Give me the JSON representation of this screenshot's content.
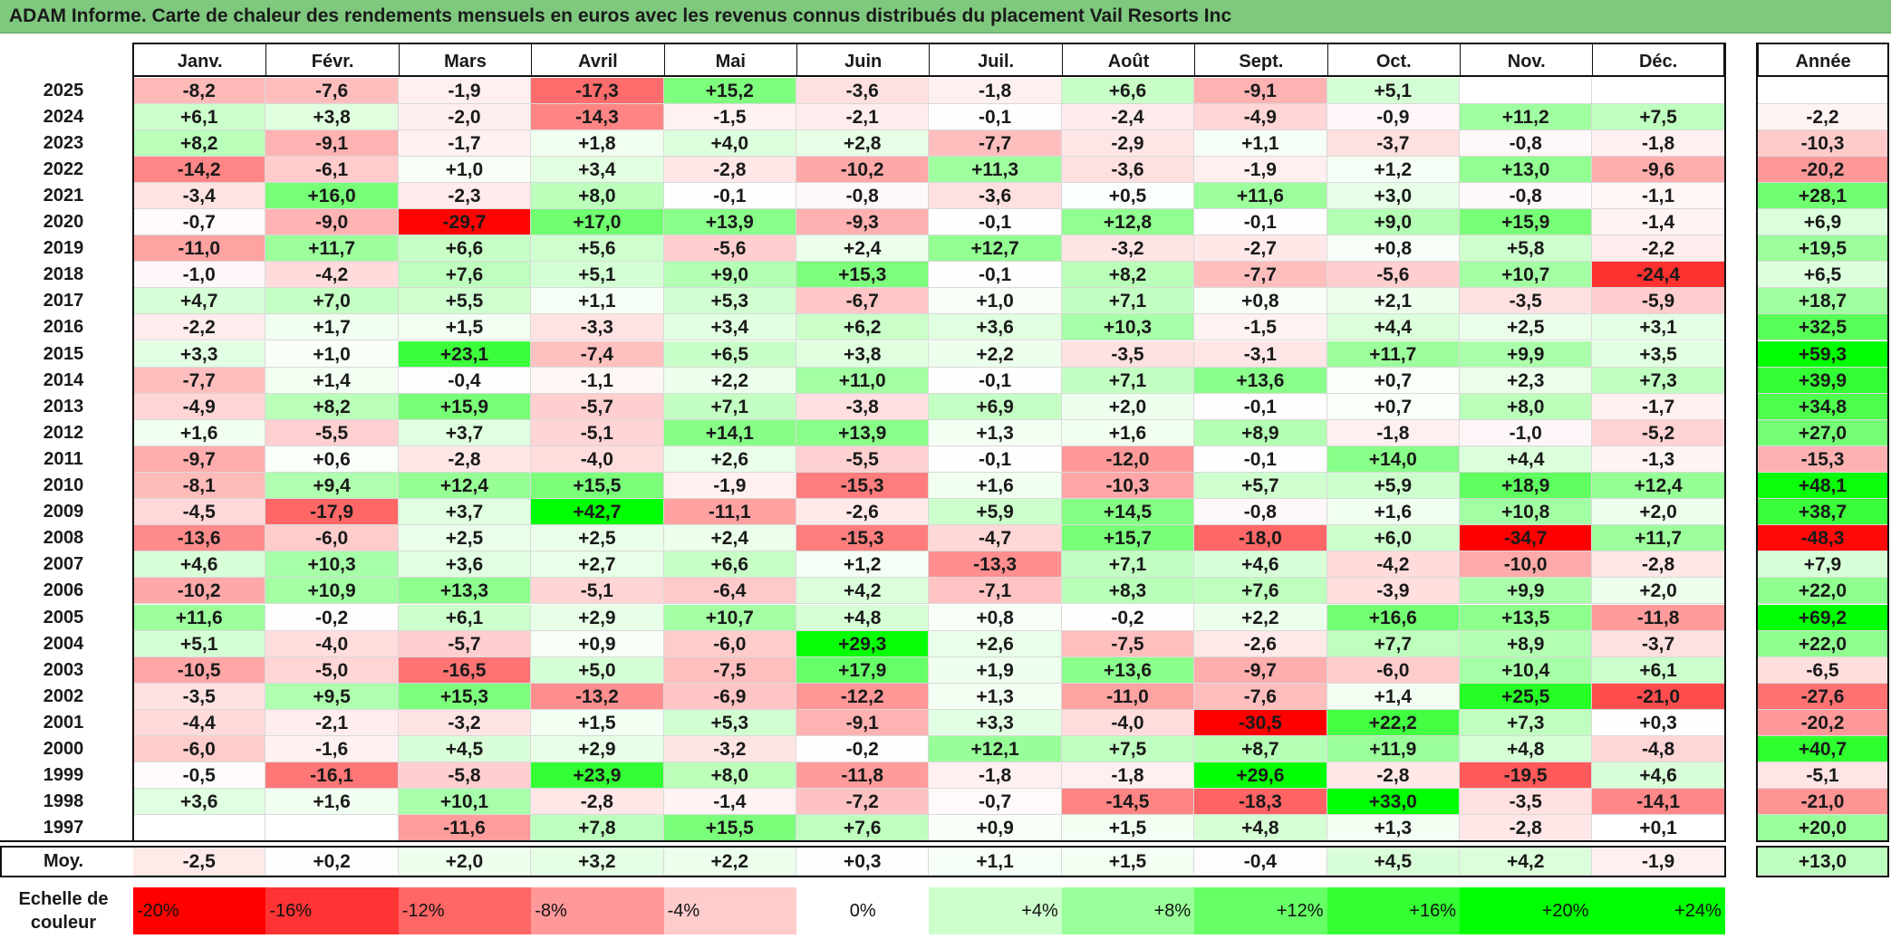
{
  "header": {
    "title": "ADAM Informe. Carte de chaleur des rendements mensuels en euros avec les revenus connus distribués du placement Vail Resorts Inc"
  },
  "chart_data": {
    "type": "heatmap",
    "title": "ADAM Informe. Carte de chaleur des rendements mensuels en euros avec les revenus connus distribués du placement Vail Resorts Inc",
    "months": [
      "Janv.",
      "Févr.",
      "Mars",
      "Avril",
      "Mai",
      "Juin",
      "Juil.",
      "Août",
      "Sept.",
      "Oct.",
      "Nov.",
      "Déc."
    ],
    "annual_label": "Année",
    "years": [
      "2025",
      "2024",
      "2023",
      "2022",
      "2021",
      "2020",
      "2019",
      "2018",
      "2017",
      "2016",
      "2015",
      "2014",
      "2013",
      "2012",
      "2011",
      "2010",
      "2009",
      "2008",
      "2007",
      "2006",
      "2005",
      "2004",
      "2003",
      "2002",
      "2001",
      "2000",
      "1999",
      "1998",
      "1997"
    ],
    "values": [
      [
        "-8,2",
        "-7,6",
        "-1,9",
        "-17,3",
        "+15,2",
        "-3,6",
        "-1,8",
        "+6,6",
        "-9,1",
        "+5,1",
        "",
        ""
      ],
      [
        "+6,1",
        "+3,8",
        "-2,0",
        "-14,3",
        "-1,5",
        "-2,1",
        "-0,1",
        "-2,4",
        "-4,9",
        "-0,9",
        "+11,2",
        "+7,5"
      ],
      [
        "+8,2",
        "-9,1",
        "-1,7",
        "+1,8",
        "+4,0",
        "+2,8",
        "-7,7",
        "-2,9",
        "+1,1",
        "-3,7",
        "-0,8",
        "-1,8"
      ],
      [
        "-14,2",
        "-6,1",
        "+1,0",
        "+3,4",
        "-2,8",
        "-10,2",
        "+11,3",
        "-3,6",
        "-1,9",
        "+1,2",
        "+13,0",
        "-9,6"
      ],
      [
        "-3,4",
        "+16,0",
        "-2,3",
        "+8,0",
        "-0,1",
        "-0,8",
        "-3,6",
        "+0,5",
        "+11,6",
        "+3,0",
        "-0,8",
        "-1,1"
      ],
      [
        "-0,7",
        "-9,0",
        "-29,7",
        "+17,0",
        "+13,9",
        "-9,3",
        "-0,1",
        "+12,8",
        "-0,1",
        "+9,0",
        "+15,9",
        "-1,4"
      ],
      [
        "-11,0",
        "+11,7",
        "+6,6",
        "+5,6",
        "-5,6",
        "+2,4",
        "+12,7",
        "-3,2",
        "-2,7",
        "+0,8",
        "+5,8",
        "-2,2"
      ],
      [
        "-1,0",
        "-4,2",
        "+7,6",
        "+5,1",
        "+9,0",
        "+15,3",
        "-0,1",
        "+8,2",
        "-7,7",
        "-5,6",
        "+10,7",
        "-24,4"
      ],
      [
        "+4,7",
        "+7,0",
        "+5,5",
        "+1,1",
        "+5,3",
        "-6,7",
        "+1,0",
        "+7,1",
        "+0,8",
        "+2,1",
        "-3,5",
        "-5,9"
      ],
      [
        "-2,2",
        "+1,7",
        "+1,5",
        "-3,3",
        "+3,4",
        "+6,2",
        "+3,6",
        "+10,3",
        "-1,5",
        "+4,4",
        "+2,5",
        "+3,1"
      ],
      [
        "+3,3",
        "+1,0",
        "+23,1",
        "-7,4",
        "+6,5",
        "+3,8",
        "+2,2",
        "-3,5",
        "-3,1",
        "+11,7",
        "+9,9",
        "+3,5"
      ],
      [
        "-7,7",
        "+1,4",
        "-0,4",
        "-1,1",
        "+2,2",
        "+11,0",
        "-0,1",
        "+7,1",
        "+13,6",
        "+0,7",
        "+2,3",
        "+7,3"
      ],
      [
        "-4,9",
        "+8,2",
        "+15,9",
        "-5,7",
        "+7,1",
        "-3,8",
        "+6,9",
        "+2,0",
        "-0,1",
        "+0,7",
        "+8,0",
        "-1,7"
      ],
      [
        "+1,6",
        "-5,5",
        "+3,7",
        "-5,1",
        "+14,1",
        "+13,9",
        "+1,3",
        "+1,6",
        "+8,9",
        "-1,8",
        "-1,0",
        "-5,2"
      ],
      [
        "-9,7",
        "+0,6",
        "-2,8",
        "-4,0",
        "+2,6",
        "-5,5",
        "-0,1",
        "-12,0",
        "-0,1",
        "+14,0",
        "+4,4",
        "-1,3"
      ],
      [
        "-8,1",
        "+9,4",
        "+12,4",
        "+15,5",
        "-1,9",
        "-15,3",
        "+1,6",
        "-10,3",
        "+5,7",
        "+5,9",
        "+18,9",
        "+12,4"
      ],
      [
        "-4,5",
        "-17,9",
        "+3,7",
        "+42,7",
        "-11,1",
        "-2,6",
        "+5,9",
        "+14,5",
        "-0,8",
        "+1,6",
        "+10,8",
        "+2,0"
      ],
      [
        "-13,6",
        "-6,0",
        "+2,5",
        "+2,5",
        "+2,4",
        "-15,3",
        "-4,7",
        "+15,7",
        "-18,0",
        "+6,0",
        "-34,7",
        "+11,7"
      ],
      [
        "+4,6",
        "+10,3",
        "+3,6",
        "+2,7",
        "+6,6",
        "+1,2",
        "-13,3",
        "+7,1",
        "+4,6",
        "-4,2",
        "-10,0",
        "-2,8"
      ],
      [
        "-10,2",
        "+10,9",
        "+13,3",
        "-5,1",
        "-6,4",
        "+4,2",
        "-7,1",
        "+8,3",
        "+7,6",
        "-3,9",
        "+9,9",
        "+2,0"
      ],
      [
        "+11,6",
        "-0,2",
        "+6,1",
        "+2,9",
        "+10,7",
        "+4,8",
        "+0,8",
        "-0,2",
        "+2,2",
        "+16,6",
        "+13,5",
        "-11,8"
      ],
      [
        "+5,1",
        "-4,0",
        "-5,7",
        "+0,9",
        "-6,0",
        "+29,3",
        "+2,6",
        "-7,5",
        "-2,6",
        "+7,7",
        "+8,9",
        "-3,7"
      ],
      [
        "-10,5",
        "-5,0",
        "-16,5",
        "+5,0",
        "-7,5",
        "+17,9",
        "+1,9",
        "+13,6",
        "-9,7",
        "-6,0",
        "+10,4",
        "+6,1"
      ],
      [
        "-3,5",
        "+9,5",
        "+15,3",
        "-13,2",
        "-6,9",
        "-12,2",
        "+1,3",
        "-11,0",
        "-7,6",
        "+1,4",
        "+25,5",
        "-21,0"
      ],
      [
        "-4,4",
        "-2,1",
        "-3,2",
        "+1,5",
        "+5,3",
        "-9,1",
        "+3,3",
        "-4,0",
        "-30,5",
        "+22,2",
        "+7,3",
        "+0,3"
      ],
      [
        "-6,0",
        "-1,6",
        "+4,5",
        "+2,9",
        "-3,2",
        "-0,2",
        "+12,1",
        "+7,5",
        "+8,7",
        "+11,9",
        "+4,8",
        "-4,8"
      ],
      [
        "-0,5",
        "-16,1",
        "-5,8",
        "+23,9",
        "+8,0",
        "-11,8",
        "-1,8",
        "-1,8",
        "+29,6",
        "-2,8",
        "-19,5",
        "+4,6"
      ],
      [
        "+3,6",
        "+1,6",
        "+10,1",
        "-2,8",
        "-1,4",
        "-7,2",
        "-0,7",
        "-14,5",
        "-18,3",
        "+33,0",
        "-3,5",
        "-14,1"
      ],
      [
        "",
        "",
        "-11,6",
        "+7,8",
        "+15,5",
        "+7,6",
        "+0,9",
        "+1,5",
        "+4,8",
        "+1,3",
        "-2,8",
        "+0,1"
      ]
    ],
    "annual": [
      "",
      "-2,2",
      "-10,3",
      "-20,2",
      "+28,1",
      "+6,9",
      "+19,5",
      "+6,5",
      "+18,7",
      "+32,5",
      "+59,3",
      "+39,9",
      "+34,8",
      "+27,0",
      "-15,3",
      "+48,1",
      "+38,7",
      "-48,3",
      "+7,9",
      "+22,0",
      "+69,2",
      "+22,0",
      "-6,5",
      "-27,6",
      "-20,2",
      "+40,7",
      "-5,1",
      "-21,0",
      "+20,0"
    ],
    "average": {
      "label": "Moy.",
      "values": [
        "-2,5",
        "+0,2",
        "+2,0",
        "+3,2",
        "+2,2",
        "+0,3",
        "+1,1",
        "+1,5",
        "-0,4",
        "+4,5",
        "+4,2",
        "-1,9"
      ],
      "annual": "+13,0"
    },
    "scale": {
      "label_line1": "Echelle de",
      "label_line2": "couleur",
      "steps": [
        "-20%",
        "-16%",
        "-12%",
        "-8%",
        "-4%",
        "0%",
        "+4%",
        "+8%",
        "+12%",
        "+16%",
        "+20%",
        "+24%"
      ],
      "step_values": [
        -20,
        -16,
        -12,
        -8,
        -4,
        0,
        4,
        8,
        12,
        16,
        20,
        24
      ]
    },
    "colors": {
      "negative": "#ff0000",
      "zero": "#ffffff",
      "positive": "#00ff00",
      "title_bar": "#7fc97f"
    }
  }
}
